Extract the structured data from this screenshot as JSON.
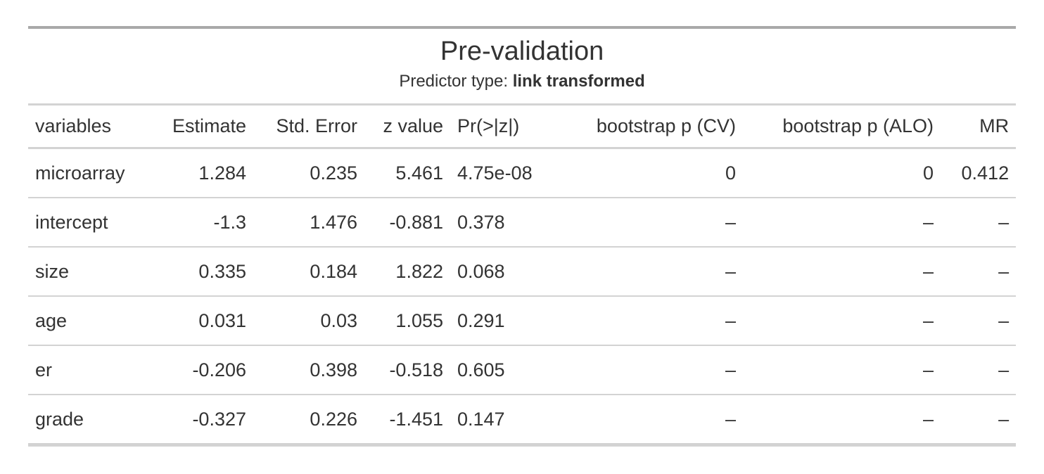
{
  "chart_data": {
    "type": "table",
    "title": "Pre-validation",
    "subtitle_prefix": "Predictor type: ",
    "subtitle_bold": "link transformed",
    "missing_symbol": "–",
    "columns": [
      {
        "label": "variables",
        "align": "left"
      },
      {
        "label": "Estimate",
        "align": "right"
      },
      {
        "label": "Std. Error",
        "align": "right"
      },
      {
        "label": "z value",
        "align": "right"
      },
      {
        "label": "Pr(>|z|)",
        "align": "left"
      },
      {
        "label": "bootstrap p (CV)",
        "align": "right"
      },
      {
        "label": "bootstrap p (ALO)",
        "align": "right"
      },
      {
        "label": "MR",
        "align": "right"
      }
    ],
    "rows": [
      [
        "microarray",
        "1.284",
        "0.235",
        "5.461",
        "4.75e-08",
        "0",
        "0",
        "0.412"
      ],
      [
        "intercept",
        "-1.3",
        "1.476",
        "-0.881",
        "0.378",
        "–",
        "–",
        "–"
      ],
      [
        "size",
        "0.335",
        "0.184",
        "1.822",
        "0.068",
        "–",
        "–",
        "–"
      ],
      [
        "age",
        "0.031",
        "0.03",
        "1.055",
        "0.291",
        "–",
        "–",
        "–"
      ],
      [
        "er",
        "-0.206",
        "0.398",
        "-0.518",
        "0.605",
        "–",
        "–",
        "–"
      ],
      [
        "grade",
        "-0.327",
        "0.226",
        "-1.451",
        "0.147",
        "–",
        "–",
        "–"
      ]
    ]
  },
  "colors": {
    "text": "#333333",
    "border_heavy": "#A9A9A9",
    "border_light": "#D3D3D3",
    "background": "#FFFFFF"
  }
}
